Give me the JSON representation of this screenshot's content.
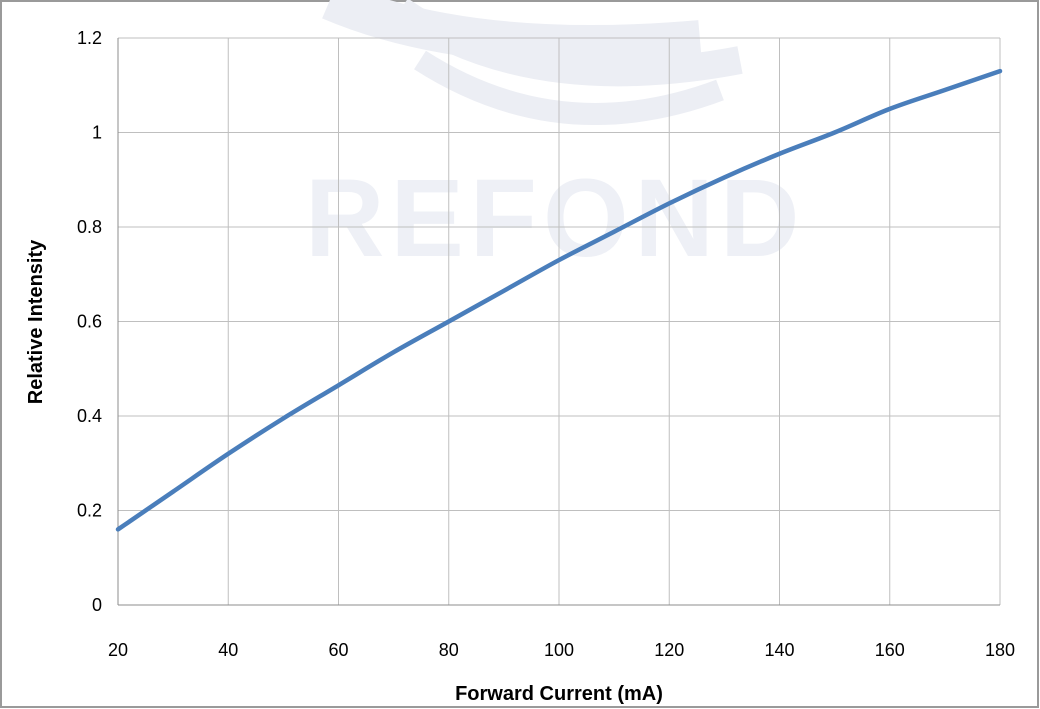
{
  "watermark": {
    "text": "REFOND",
    "color": "#eef0f6"
  },
  "chart_data": {
    "type": "line",
    "xlabel": "Forward Current (mA)",
    "ylabel": "Relative Intensity",
    "xlim": [
      20,
      180
    ],
    "ylim": [
      0,
      1.2
    ],
    "x_ticks": [
      "20",
      "40",
      "60",
      "80",
      "100",
      "120",
      "140",
      "160",
      "180"
    ],
    "y_ticks": [
      "0",
      "0.2",
      "0.4",
      "0.6",
      "0.8",
      "1",
      "1.2"
    ],
    "grid": true,
    "legend": "none",
    "series": [
      {
        "color": "#4a7ebb",
        "x": [
          20,
          30,
          40,
          50,
          60,
          70,
          80,
          90,
          100,
          110,
          120,
          130,
          140,
          150,
          160,
          170,
          180
        ],
        "y": [
          0.16,
          0.24,
          0.32,
          0.395,
          0.465,
          0.535,
          0.6,
          0.665,
          0.73,
          0.79,
          0.85,
          0.905,
          0.955,
          1.0,
          1.05,
          1.09,
          1.13
        ]
      }
    ]
  }
}
